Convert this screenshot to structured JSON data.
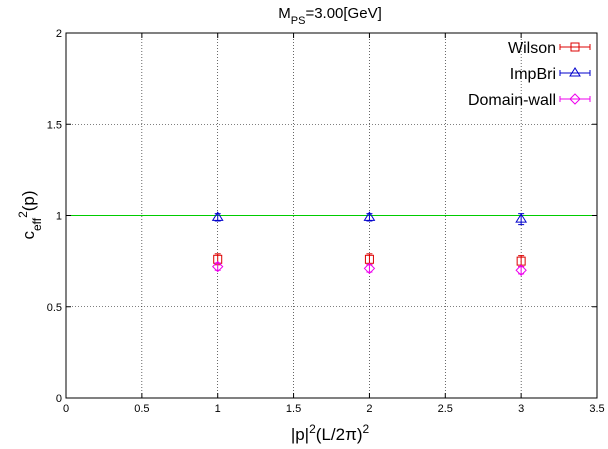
{
  "chart_data": {
    "type": "scatter",
    "title": "M_{PS}=3.00[GeV]",
    "title_main": "M",
    "title_sub": "PS",
    "title_rest": "=3.00[GeV]",
    "xlabel": "|p|^2(L/2π)^2",
    "ylabel": "c_eff^2(p)",
    "xlim": [
      0,
      3.5
    ],
    "ylim": [
      0,
      2
    ],
    "grid": true,
    "legend_position": "top-right",
    "xticks": [
      "0",
      "0.5",
      "1",
      "1.5",
      "2",
      "2.5",
      "3",
      "3.5"
    ],
    "yticks": [
      "0",
      "0.5",
      "1",
      "1.5",
      "2"
    ],
    "reference_line": {
      "y": 1,
      "color": "#00cc00"
    },
    "series": [
      {
        "name": "Wilson",
        "marker": "square",
        "color": "#dd0000",
        "x": [
          1,
          2,
          3
        ],
        "y": [
          0.76,
          0.76,
          0.75
        ],
        "err": [
          0.03,
          0.03,
          0.03
        ]
      },
      {
        "name": "ImpBri",
        "marker": "triangle",
        "color": "#0000cc",
        "x": [
          1,
          2,
          3
        ],
        "y": [
          0.99,
          0.99,
          0.98
        ],
        "err": [
          0.02,
          0.02,
          0.03
        ]
      },
      {
        "name": "Domain-wall",
        "marker": "diamond",
        "color": "#ee00ee",
        "x": [
          1,
          2,
          3
        ],
        "y": [
          0.72,
          0.71,
          0.7
        ],
        "err": [
          0.02,
          0.02,
          0.02
        ]
      }
    ]
  }
}
